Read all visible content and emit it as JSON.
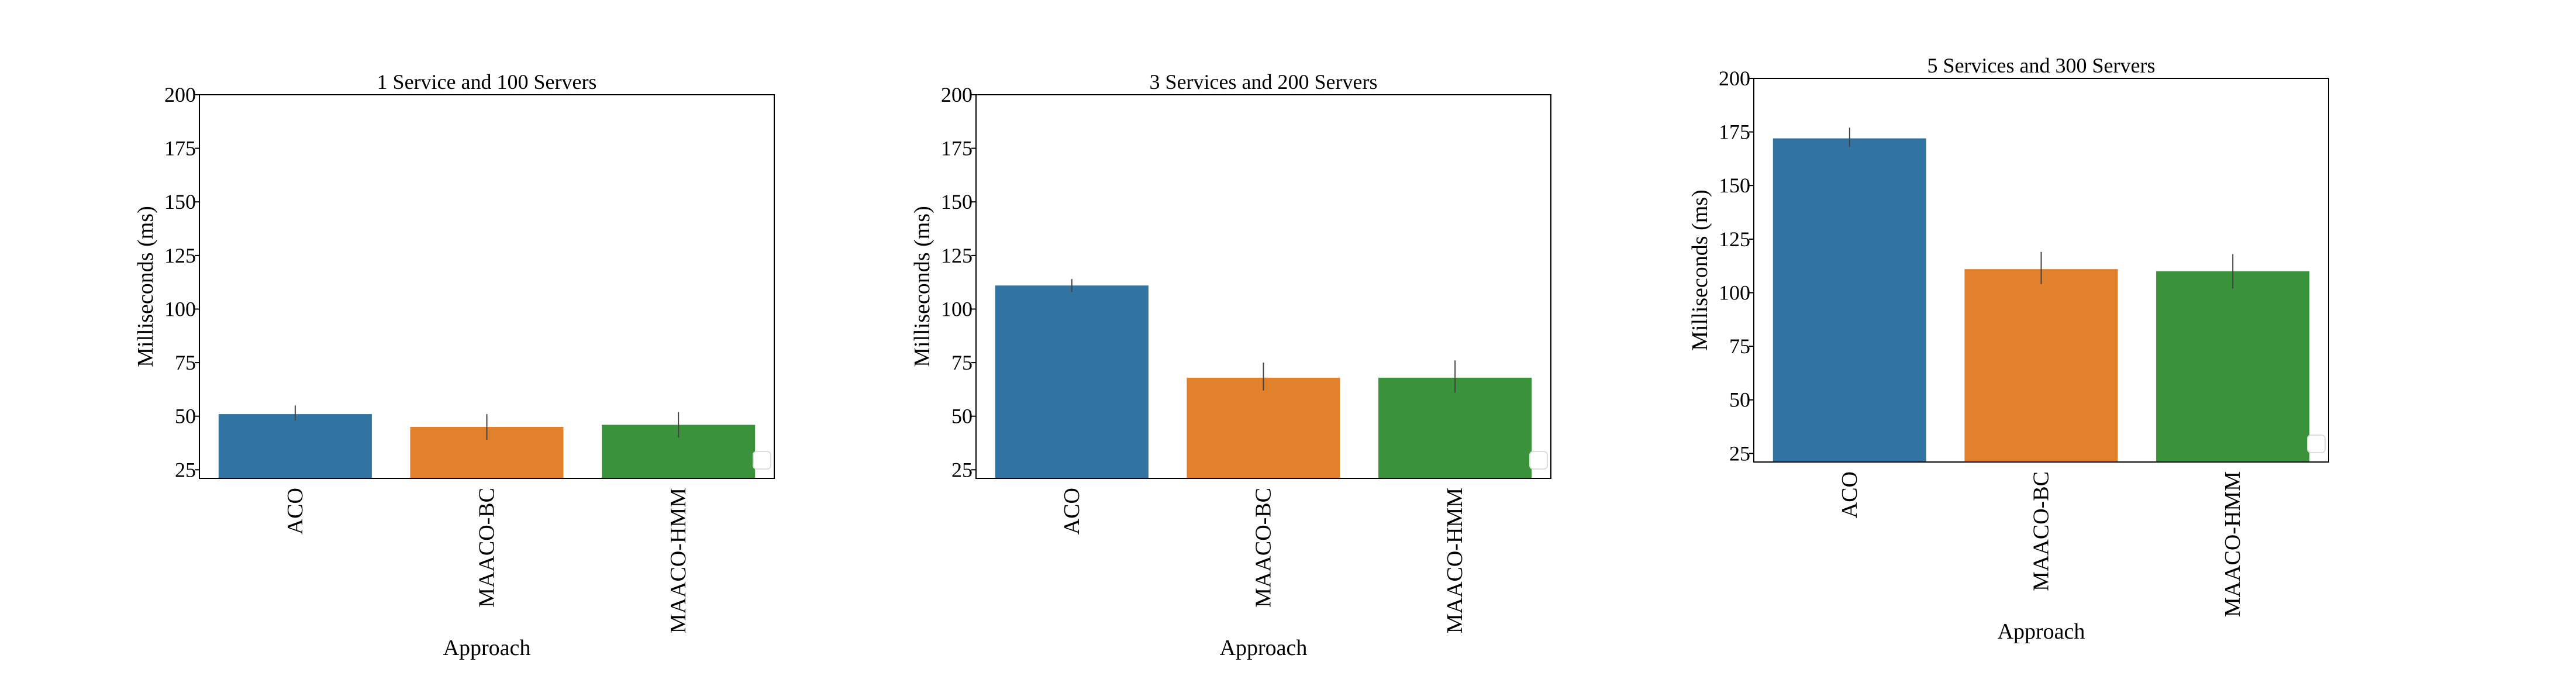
{
  "chart_data": [
    {
      "type": "bar",
      "title": "1 Service and 100 Servers",
      "xlabel": "Approach",
      "ylabel": "Milliseconds (ms)",
      "categories": [
        "ACO",
        "MAACO-BC",
        "MAACO-HMM"
      ],
      "values": [
        51,
        45,
        46
      ],
      "errors": [
        [
          48,
          55
        ],
        [
          39,
          51
        ],
        [
          40,
          52
        ]
      ],
      "colors": [
        "#3274a1",
        "#e1812c",
        "#3a923a"
      ],
      "ylim": [
        21,
        200
      ],
      "yticks": [
        25,
        50,
        75,
        100,
        125,
        150,
        175,
        200
      ],
      "grid": false
    },
    {
      "type": "bar",
      "title": "3 Services and 200 Servers",
      "xlabel": "Approach",
      "ylabel": "Milliseconds (ms)",
      "categories": [
        "ACO",
        "MAACO-BC",
        "MAACO-HMM"
      ],
      "values": [
        111,
        68,
        68
      ],
      "errors": [
        [
          108,
          114
        ],
        [
          62,
          75
        ],
        [
          61,
          76
        ]
      ],
      "colors": [
        "#3274a1",
        "#e1812c",
        "#3a923a"
      ],
      "ylim": [
        21,
        200
      ],
      "yticks": [
        25,
        50,
        75,
        100,
        125,
        150,
        175,
        200
      ],
      "grid": false
    },
    {
      "type": "bar",
      "title": "5 Services and 300 Servers",
      "xlabel": "Approach",
      "ylabel": "Milliseconds (ms)",
      "categories": [
        "ACO",
        "MAACO-BC",
        "MAACO-HMM"
      ],
      "values": [
        172,
        111,
        110
      ],
      "errors": [
        [
          168,
          177
        ],
        [
          104,
          119
        ],
        [
          102,
          118
        ]
      ],
      "colors": [
        "#3274a1",
        "#e1812c",
        "#3a923a"
      ],
      "ylim": [
        21,
        200
      ],
      "yticks": [
        25,
        50,
        75,
        100,
        125,
        150,
        175,
        200
      ],
      "grid": false
    }
  ]
}
